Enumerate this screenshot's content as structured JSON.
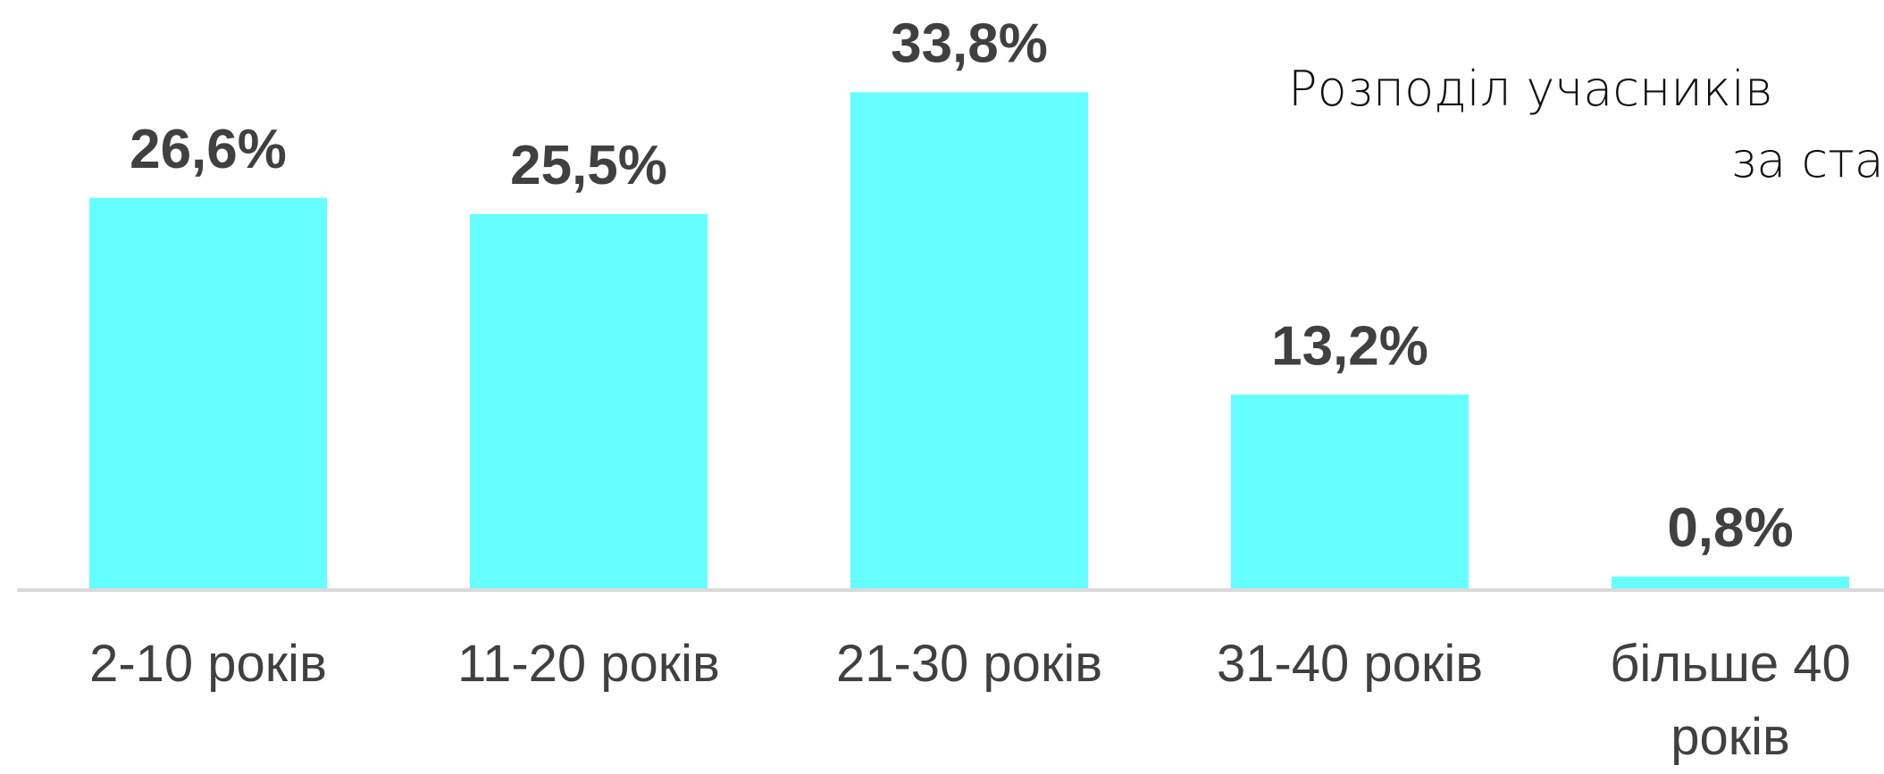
{
  "chart_data": {
    "type": "bar",
    "title": [
      "Розподіл учасників",
      "за ста"
    ],
    "categories": [
      "2-10 років",
      "11-20 років",
      "21-30 років",
      "31-40 років",
      "більше 40 років"
    ],
    "values": [
      26.6,
      25.5,
      33.8,
      13.2,
      0.8
    ],
    "value_labels": [
      "26,6%",
      "25,5%",
      "33,8%",
      "13,2%",
      "0,8%"
    ],
    "color": "#66ffff"
  }
}
